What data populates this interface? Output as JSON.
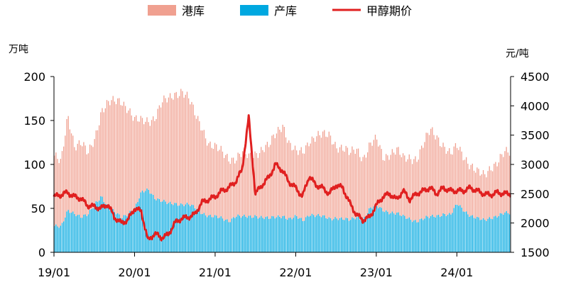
{
  "chart_data": {
    "type": "bar+line",
    "legend_position": "top-center",
    "grid": false,
    "x_tick_labels": [
      "19/01",
      "20/01",
      "21/01",
      "22/01",
      "23/01",
      "24/01"
    ],
    "x_range": [
      "2019-01",
      "2024-09"
    ],
    "left_axis": {
      "unit": "万吨",
      "ylim": [
        0,
        200
      ],
      "ticks": [
        0,
        50,
        100,
        150,
        200
      ]
    },
    "right_axis": {
      "unit": "元/吨",
      "ylim": [
        1500,
        4500
      ],
      "ticks": [
        1500,
        2000,
        2500,
        3000,
        3500,
        4000,
        4500
      ]
    },
    "series": [
      {
        "name": "港库",
        "kind": "bar-stacked",
        "color": "#F0A090",
        "anchors": [
          [
            0,
            80
          ],
          [
            1,
            72
          ],
          [
            2,
            108
          ],
          [
            3,
            78
          ],
          [
            4,
            85
          ],
          [
            5,
            68
          ],
          [
            6,
            74
          ],
          [
            7,
            98
          ],
          [
            8,
            120
          ],
          [
            9,
            125
          ],
          [
            10,
            132
          ],
          [
            11,
            120
          ],
          [
            12,
            100
          ],
          [
            13,
            80
          ],
          [
            14,
            78
          ],
          [
            15,
            93
          ],
          [
            16,
            112
          ],
          [
            17,
            118
          ],
          [
            18,
            125
          ],
          [
            19,
            130
          ],
          [
            20,
            120
          ],
          [
            21,
            105
          ],
          [
            22,
            98
          ],
          [
            23,
            82
          ],
          [
            24,
            78
          ],
          [
            25,
            75
          ],
          [
            26,
            72
          ],
          [
            27,
            65
          ],
          [
            28,
            72
          ],
          [
            29,
            68
          ],
          [
            30,
            72
          ],
          [
            31,
            78
          ],
          [
            32,
            82
          ],
          [
            33,
            95
          ],
          [
            34,
            105
          ],
          [
            35,
            85
          ],
          [
            36,
            72
          ],
          [
            37,
            78
          ],
          [
            38,
            85
          ],
          [
            39,
            90
          ],
          [
            40,
            92
          ],
          [
            41,
            95
          ],
          [
            42,
            82
          ],
          [
            43,
            80
          ],
          [
            44,
            75
          ],
          [
            45,
            78
          ],
          [
            46,
            70
          ],
          [
            47,
            72
          ],
          [
            48,
            75
          ],
          [
            49,
            60
          ],
          [
            50,
            68
          ],
          [
            51,
            72
          ],
          [
            52,
            65
          ],
          [
            53,
            70
          ],
          [
            54,
            72
          ],
          [
            55,
            85
          ],
          [
            56,
            98
          ],
          [
            57,
            90
          ],
          [
            58,
            78
          ],
          [
            59,
            68
          ],
          [
            60,
            65
          ],
          [
            61,
            62
          ],
          [
            62,
            58
          ],
          [
            63,
            52
          ],
          [
            64,
            50
          ],
          [
            65,
            58
          ],
          [
            66,
            62
          ],
          [
            67,
            68
          ]
        ]
      },
      {
        "name": "产库",
        "kind": "bar-stacked",
        "color": "#00A8E0",
        "anchors": [
          [
            0,
            30
          ],
          [
            1,
            28
          ],
          [
            2,
            48
          ],
          [
            3,
            45
          ],
          [
            4,
            40
          ],
          [
            5,
            42
          ],
          [
            6,
            55
          ],
          [
            7,
            65
          ],
          [
            8,
            50
          ],
          [
            9,
            45
          ],
          [
            10,
            40
          ],
          [
            11,
            45
          ],
          [
            12,
            50
          ],
          [
            13,
            68
          ],
          [
            14,
            72
          ],
          [
            15,
            62
          ],
          [
            16,
            58
          ],
          [
            17,
            55
          ],
          [
            18,
            56
          ],
          [
            19,
            55
          ],
          [
            20,
            54
          ],
          [
            21,
            50
          ],
          [
            22,
            45
          ],
          [
            23,
            42
          ],
          [
            24,
            40
          ],
          [
            25,
            38
          ],
          [
            26,
            36
          ],
          [
            27,
            42
          ],
          [
            28,
            40
          ],
          [
            29,
            40
          ],
          [
            30,
            42
          ],
          [
            31,
            40
          ],
          [
            32,
            38
          ],
          [
            33,
            40
          ],
          [
            34,
            42
          ],
          [
            35,
            38
          ],
          [
            36,
            40
          ],
          [
            37,
            36
          ],
          [
            38,
            44
          ],
          [
            39,
            42
          ],
          [
            40,
            40
          ],
          [
            41,
            38
          ],
          [
            42,
            40
          ],
          [
            43,
            38
          ],
          [
            44,
            36
          ],
          [
            45,
            40
          ],
          [
            46,
            38
          ],
          [
            47,
            50
          ],
          [
            48,
            52
          ],
          [
            49,
            48
          ],
          [
            50,
            46
          ],
          [
            51,
            44
          ],
          [
            52,
            40
          ],
          [
            53,
            38
          ],
          [
            54,
            36
          ],
          [
            55,
            38
          ],
          [
            56,
            40
          ],
          [
            57,
            42
          ],
          [
            58,
            44
          ],
          [
            59,
            42
          ],
          [
            60,
            55
          ],
          [
            61,
            48
          ],
          [
            62,
            42
          ],
          [
            63,
            38
          ],
          [
            64,
            36
          ],
          [
            65,
            40
          ],
          [
            66,
            42
          ],
          [
            67,
            44
          ]
        ]
      },
      {
        "name": "甲醇期价",
        "kind": "line",
        "color": "#E02020",
        "anchors": [
          [
            0,
            2450
          ],
          [
            1,
            2480
          ],
          [
            2,
            2520
          ],
          [
            3,
            2450
          ],
          [
            4,
            2420
          ],
          [
            5,
            2300
          ],
          [
            6,
            2280
          ],
          [
            7,
            2250
          ],
          [
            8,
            2320
          ],
          [
            9,
            2100
          ],
          [
            10,
            2000
          ],
          [
            11,
            2050
          ],
          [
            12,
            2250
          ],
          [
            13,
            2200
          ],
          [
            14,
            1700
          ],
          [
            15,
            1820
          ],
          [
            16,
            1750
          ],
          [
            17,
            1800
          ],
          [
            18,
            2000
          ],
          [
            19,
            2080
          ],
          [
            20,
            2100
          ],
          [
            21,
            2150
          ],
          [
            22,
            2350
          ],
          [
            23,
            2400
          ],
          [
            24,
            2450
          ],
          [
            25,
            2550
          ],
          [
            26,
            2600
          ],
          [
            27,
            2700
          ],
          [
            28,
            2900
          ],
          [
            29,
            3800
          ],
          [
            30,
            2500
          ],
          [
            31,
            2650
          ],
          [
            32,
            2780
          ],
          [
            33,
            3000
          ],
          [
            34,
            2900
          ],
          [
            35,
            2700
          ],
          [
            36,
            2600
          ],
          [
            37,
            2450
          ],
          [
            38,
            2800
          ],
          [
            39,
            2650
          ],
          [
            40,
            2600
          ],
          [
            41,
            2500
          ],
          [
            42,
            2650
          ],
          [
            43,
            2600
          ],
          [
            44,
            2350
          ],
          [
            45,
            2150
          ],
          [
            46,
            2050
          ],
          [
            47,
            2100
          ],
          [
            48,
            2300
          ],
          [
            49,
            2450
          ],
          [
            50,
            2500
          ],
          [
            51,
            2400
          ],
          [
            52,
            2550
          ],
          [
            53,
            2400
          ],
          [
            54,
            2500
          ],
          [
            55,
            2550
          ],
          [
            56,
            2600
          ],
          [
            57,
            2500
          ],
          [
            58,
            2600
          ],
          [
            59,
            2550
          ],
          [
            60,
            2550
          ],
          [
            61,
            2550
          ],
          [
            62,
            2600
          ],
          [
            63,
            2550
          ],
          [
            64,
            2500
          ],
          [
            65,
            2480
          ],
          [
            66,
            2520
          ],
          [
            67,
            2500
          ]
        ]
      }
    ]
  }
}
